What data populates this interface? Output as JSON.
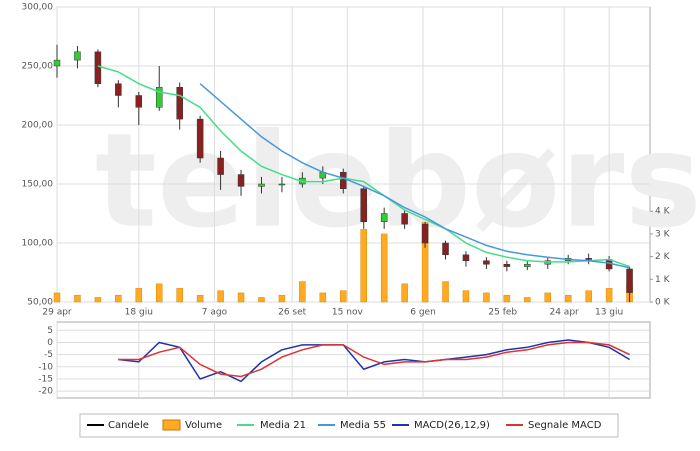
{
  "watermark": "telebørsa",
  "chart_data": [
    {
      "type": "candlestick",
      "name": "Candele",
      "up_color": "#33cc33",
      "down_color": "#882222",
      "x": [
        0,
        10,
        20,
        30,
        40,
        50,
        60,
        70,
        80,
        90,
        100,
        110,
        120,
        130,
        140,
        150,
        160,
        170,
        180,
        190,
        200,
        210,
        220,
        230,
        240,
        250,
        260,
        270,
        280
      ],
      "open": [
        250,
        255,
        262,
        235,
        225,
        215,
        232,
        205,
        172,
        158,
        148,
        150,
        150,
        155,
        160,
        146,
        118,
        125,
        116,
        100,
        90,
        85,
        82,
        80,
        82,
        85,
        87,
        86,
        78
      ],
      "high": [
        268,
        267,
        264,
        238,
        228,
        250,
        236,
        208,
        178,
        162,
        156,
        156,
        160,
        165,
        163,
        148,
        130,
        128,
        118,
        102,
        93,
        88,
        85,
        85,
        88,
        90,
        91,
        89,
        80
      ],
      "low": [
        240,
        248,
        232,
        215,
        200,
        212,
        196,
        168,
        145,
        140,
        142,
        143,
        147,
        150,
        142,
        112,
        112,
        112,
        96,
        86,
        80,
        78,
        76,
        77,
        78,
        82,
        82,
        76,
        50
      ],
      "close": [
        255,
        262,
        235,
        225,
        215,
        232,
        205,
        172,
        158,
        148,
        150,
        150,
        155,
        160,
        146,
        118,
        125,
        116,
        100,
        90,
        85,
        82,
        80,
        82,
        85,
        87,
        86,
        78,
        58
      ],
      "series": [
        {
          "name": "Media 21",
          "type": "line",
          "color": "#44dd88",
          "values": [
            null,
            null,
            250,
            245,
            235,
            228,
            225,
            215,
            195,
            178,
            165,
            158,
            152,
            152,
            155,
            152,
            140,
            128,
            120,
            112,
            100,
            92,
            88,
            85,
            84,
            84,
            85,
            86,
            80
          ]
        },
        {
          "name": "Media 55",
          "type": "line",
          "color": "#4499dd",
          "values": [
            null,
            null,
            null,
            null,
            null,
            null,
            null,
            235,
            220,
            205,
            190,
            178,
            168,
            160,
            155,
            148,
            140,
            130,
            122,
            112,
            105,
            98,
            93,
            90,
            88,
            86,
            85,
            83,
            79
          ]
        },
        {
          "name": "Volume",
          "type": "bar",
          "axis": "y2",
          "color": "#ffaa22",
          "values": [
            0.4,
            0.3,
            0.2,
            0.3,
            0.6,
            0.8,
            0.6,
            0.3,
            0.5,
            0.4,
            0.2,
            0.3,
            0.9,
            0.4,
            0.5,
            3.2,
            3.0,
            0.8,
            3.5,
            0.9,
            0.5,
            0.4,
            0.3,
            0.2,
            0.4,
            0.3,
            0.5,
            0.6,
            0.8
          ]
        }
      ],
      "xlim": [
        0,
        290
      ],
      "xticks": [
        {
          "value": 0,
          "label": "29 apr"
        },
        {
          "value": 40,
          "label": "18 giu"
        },
        {
          "value": 77,
          "label": "7 ago"
        },
        {
          "value": 115,
          "label": "26 set"
        },
        {
          "value": 142,
          "label": "15 nov"
        },
        {
          "value": 179,
          "label": "6 gen"
        },
        {
          "value": 218,
          "label": "25 feb"
        },
        {
          "value": 248,
          "label": "24 apr"
        },
        {
          "value": 270,
          "label": "13 giu"
        }
      ],
      "ylim": [
        50,
        300
      ],
      "yticks": [
        {
          "value": 50,
          "label": "50,00"
        },
        {
          "value": 100,
          "label": "100,00"
        },
        {
          "value": 150,
          "label": "150,00"
        },
        {
          "value": 200,
          "label": "200,00"
        },
        {
          "value": 250,
          "label": "250,00"
        },
        {
          "value": 300,
          "label": "300,00"
        }
      ],
      "y2lim": [
        0,
        13
      ],
      "y2ticks": [
        {
          "value": 0,
          "label": "0 K"
        },
        {
          "value": 1,
          "label": "1 K"
        },
        {
          "value": 2,
          "label": "2 K"
        },
        {
          "value": 3,
          "label": "3 K"
        },
        {
          "value": 4,
          "label": "4 K"
        }
      ],
      "grid": true
    },
    {
      "type": "line",
      "x": [
        0,
        10,
        20,
        30,
        40,
        50,
        60,
        70,
        80,
        90,
        100,
        110,
        120,
        130,
        140,
        150,
        160,
        170,
        180,
        190,
        200,
        210,
        220,
        230,
        240,
        250,
        260,
        270,
        280
      ],
      "series": [
        {
          "name": "MACD(26,12,9)",
          "color": "#2233aa",
          "values": [
            null,
            null,
            null,
            -7,
            -8,
            0,
            -2,
            -15,
            -12,
            -16,
            -8,
            -3,
            -1,
            -1,
            -1,
            -11,
            -8,
            -7,
            -8,
            -7,
            -6,
            -5,
            -3,
            -2,
            0,
            1,
            0,
            -2,
            -7
          ]
        },
        {
          "name": "Segnale MACD",
          "color": "#dd3333",
          "values": [
            null,
            null,
            null,
            -7,
            -7,
            -4,
            -2,
            -9,
            -13,
            -14,
            -11,
            -6,
            -3,
            -1,
            -1,
            -6,
            -9,
            -8,
            -8,
            -7,
            -7,
            -6,
            -4,
            -3,
            -1,
            0,
            0,
            -1,
            -5
          ]
        }
      ],
      "ylim": [
        -22,
        8
      ],
      "yticks": [
        -20,
        -15,
        -10,
        -5,
        0,
        5
      ],
      "grid": true
    }
  ]
}
